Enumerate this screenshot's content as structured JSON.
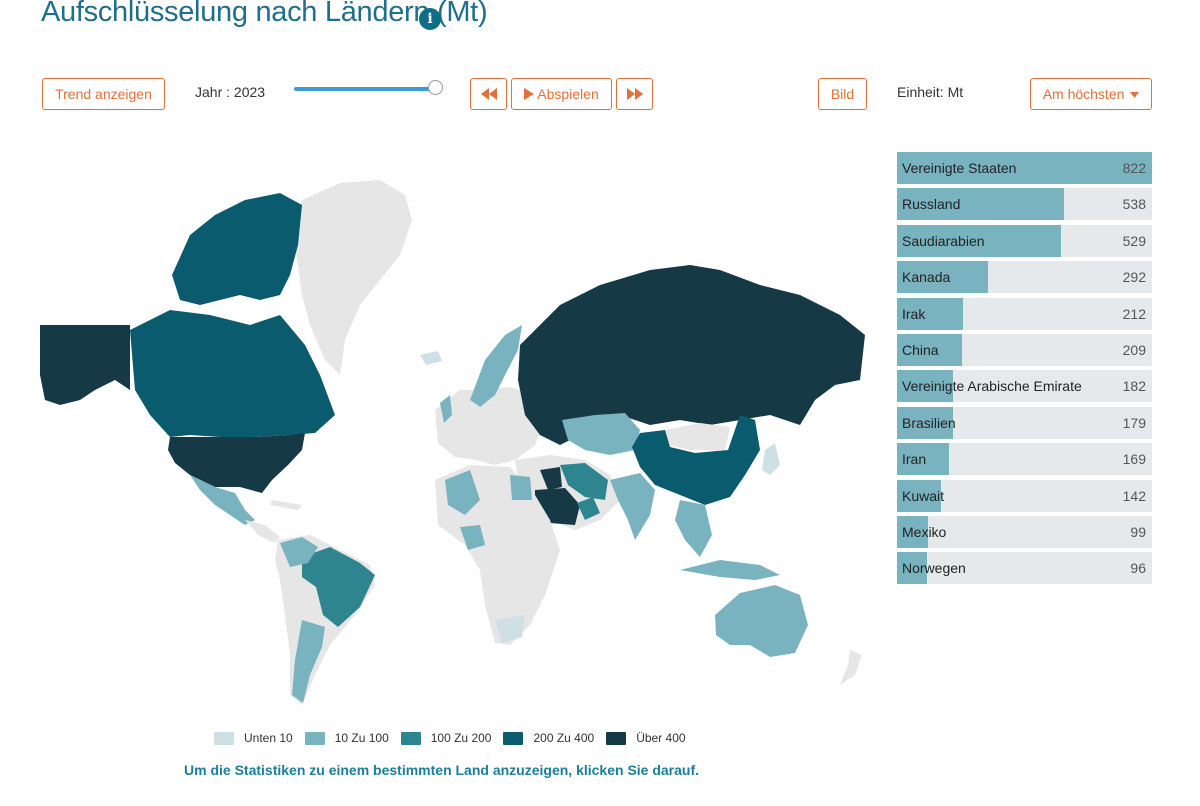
{
  "header": {
    "title": "Aufschlüsselung nach Ländern (Mt)",
    "info_glyph": "i"
  },
  "controls": {
    "trend_label": "Trend anzeigen",
    "year_text": "Jahr : 2023",
    "play_label": "Abspielen",
    "image_label": "Bild",
    "unit_text": "Einheit: Mt",
    "sort_label": "Am höchsten",
    "slider_value": 1.0
  },
  "colors": {
    "accent": "#e2703a",
    "title": "#1f6f8b",
    "no_data": "#e6e6e6",
    "bin_under10": "#cfe0e5",
    "bin_10_100": "#7ab3c0",
    "bin_100_200": "#2e8590",
    "bin_200_400": "#0b5b6f",
    "bin_over400": "#163a45"
  },
  "ranking": {
    "max": 822,
    "items": [
      {
        "name": "Vereinigte Staaten",
        "value": 822
      },
      {
        "name": "Russland",
        "value": 538
      },
      {
        "name": "Saudiarabien",
        "value": 529
      },
      {
        "name": "Kanada",
        "value": 292
      },
      {
        "name": "Irak",
        "value": 212
      },
      {
        "name": "China",
        "value": 209
      },
      {
        "name": "Vereinigte Arabische Emirate",
        "value": 182
      },
      {
        "name": "Brasilien",
        "value": 179
      },
      {
        "name": "Iran",
        "value": 169
      },
      {
        "name": "Kuwait",
        "value": 142
      },
      {
        "name": "Mexiko",
        "value": 99
      },
      {
        "name": "Norwegen",
        "value": 96
      }
    ]
  },
  "legend": [
    {
      "label": "Unten 10",
      "color": "#cfe0e5"
    },
    {
      "label": "10 Zu 100",
      "color": "#7ab3c0"
    },
    {
      "label": "100 Zu 200",
      "color": "#2e8590"
    },
    {
      "label": "200 Zu 400",
      "color": "#0b5b6f"
    },
    {
      "label": "Über 400",
      "color": "#163a45"
    }
  ],
  "hint": "Um die Statistiken zu einem bestimmten Land anzuzeigen, klicken Sie darauf."
}
